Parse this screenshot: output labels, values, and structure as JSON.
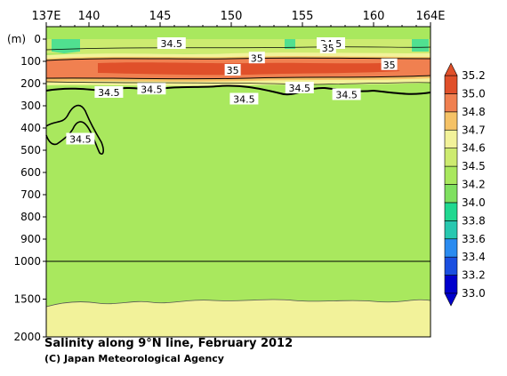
{
  "chart_data": {
    "type": "heatmap",
    "title": "Salinity along 9°N line, February 2012",
    "xlabel": "",
    "ylabel": "(m)",
    "x_ticks": [
      "137E",
      "140",
      "145",
      "150",
      "155",
      "160",
      "164E"
    ],
    "x_tick_values": [
      137,
      140,
      145,
      150,
      155,
      160,
      164
    ],
    "xlim": [
      137,
      164
    ],
    "y_ticks_upper": [
      "0",
      "100",
      "200",
      "300",
      "400",
      "500",
      "600",
      "700",
      "800",
      "900",
      "1000"
    ],
    "y_ticks_lower": [
      "1500",
      "2000"
    ],
    "ylim": [
      0,
      2000
    ],
    "y_scale_break": 1000,
    "colorbar": {
      "levels": [
        "33.0",
        "33.2",
        "33.4",
        "33.6",
        "33.8",
        "34.0",
        "34.2",
        "34.5",
        "34.6",
        "34.7",
        "34.8",
        "35.0",
        "35.2"
      ],
      "colors": [
        "#0000cc",
        "#1a4fe0",
        "#2a8bf0",
        "#28c8b0",
        "#20d890",
        "#7fe060",
        "#a9e85e",
        "#cdeb70",
        "#f2f29a",
        "#f5c266",
        "#f08050",
        "#e0502a"
      ]
    },
    "contour_labels": [
      {
        "value": "34.5",
        "lon": 145.8,
        "depth": 20
      },
      {
        "value": "35",
        "lon": 151.8,
        "depth": 85
      },
      {
        "value": "34.5",
        "lon": 157.0,
        "depth": 20
      },
      {
        "value": "35",
        "lon": 156.8,
        "depth": 40
      },
      {
        "value": "35",
        "lon": 150.1,
        "depth": 140
      },
      {
        "value": "35",
        "lon": 161.1,
        "depth": 115
      },
      {
        "value": "34.5",
        "lon": 141.4,
        "depth": 240
      },
      {
        "value": "34.5",
        "lon": 144.4,
        "depth": 225
      },
      {
        "value": "34.5",
        "lon": 154.8,
        "depth": 220
      },
      {
        "value": "34.5",
        "lon": 158.1,
        "depth": 250
      },
      {
        "value": "34.5",
        "lon": 150.9,
        "depth": 270
      },
      {
        "value": "34.5",
        "lon": 139.4,
        "depth": 450
      }
    ]
  },
  "caption": {
    "title": "Salinity along 9°N line, February 2012",
    "credit": "(C) Japan Meteorological Agency"
  }
}
